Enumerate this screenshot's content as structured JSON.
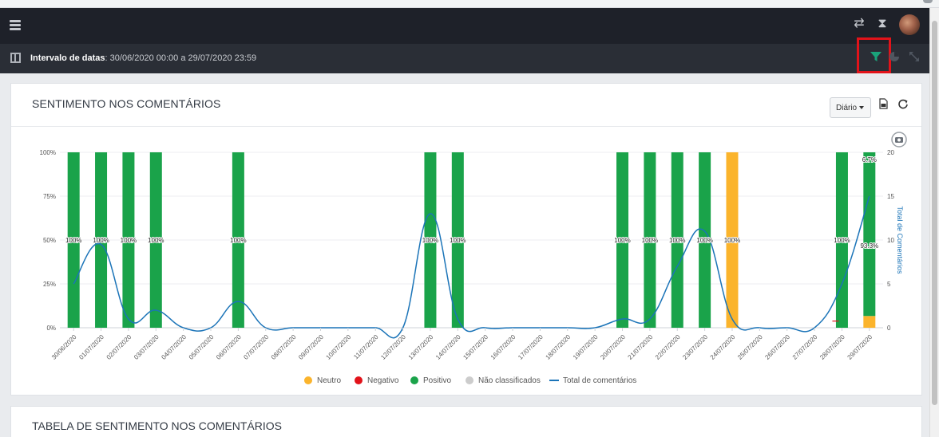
{
  "header": {
    "date_range_label": "Intervalo de datas",
    "date_range_value": ": 30/06/2020 00:00 a 29/07/2020 23:59"
  },
  "icons": {
    "menu": "hamburger-icon",
    "sync": "sync-icon",
    "hourglass": "hourglass-icon",
    "layout": "layout-icon",
    "filter": "filter-icon",
    "chart_toggle": "pie-chart-icon",
    "expand": "expand-icon",
    "pdf": "pdf-icon",
    "refresh": "refresh-icon",
    "camera": "camera-icon"
  },
  "colors": {
    "neutro": "#fbb42c",
    "negativo": "#e2121a",
    "positivo": "#1aa34a",
    "nao_classificados": "#cccccc",
    "total_line": "#1b74b8",
    "filter_highlight": "#e2131a",
    "filter_icon": "#1aa37a"
  },
  "card": {
    "title": "SENTIMENTO NOS COMENTÁRIOS",
    "granularity_button": "Diário"
  },
  "card2": {
    "title": "TABELA DE SENTIMENTO NOS COMENTÁRIOS"
  },
  "chart_data": {
    "type": "bar",
    "stacked": true,
    "categories": [
      "30/06/2020",
      "01/07/2020",
      "02/07/2020",
      "03/07/2020",
      "04/07/2020",
      "05/07/2020",
      "06/07/2020",
      "07/07/2020",
      "08/07/2020",
      "09/07/2020",
      "10/07/2020",
      "11/07/2020",
      "12/07/2020",
      "13/07/2020",
      "14/07/2020",
      "15/07/2020",
      "16/07/2020",
      "17/07/2020",
      "18/07/2020",
      "19/07/2020",
      "20/07/2020",
      "21/07/2020",
      "22/07/2020",
      "23/07/2020",
      "24/07/2020",
      "25/07/2020",
      "26/07/2020",
      "27/07/2020",
      "28/07/2020",
      "29/07/2020"
    ],
    "y_ticks": [
      "0%",
      "25%",
      "50%",
      "75%",
      "100%"
    ],
    "ylim": [
      0,
      100
    ],
    "y2_label": "Total de Comentários",
    "y2_ticks": [
      "0",
      "5",
      "10",
      "15",
      "20"
    ],
    "y2lim": [
      0,
      20
    ],
    "series": [
      {
        "name": "Neutro",
        "color": "#fbb42c",
        "values": [
          0,
          0,
          0,
          0,
          0,
          0,
          0,
          0,
          0,
          0,
          0,
          0,
          0,
          0,
          0,
          0,
          0,
          0,
          0,
          0,
          0,
          0,
          0,
          0,
          100,
          0,
          0,
          0,
          0,
          6.7
        ]
      },
      {
        "name": "Negativo",
        "color": "#e2121a",
        "values": [
          0,
          0,
          0,
          0,
          0,
          0,
          0,
          0,
          0,
          0,
          0,
          0,
          0,
          0,
          0,
          0,
          0,
          0,
          0,
          0,
          0,
          0,
          0,
          0,
          0,
          0,
          0,
          0,
          0,
          0
        ]
      },
      {
        "name": "Positivo",
        "color": "#1aa34a",
        "values": [
          100,
          100,
          100,
          100,
          0,
          0,
          100,
          0,
          0,
          0,
          0,
          0,
          0,
          100,
          100,
          0,
          0,
          0,
          0,
          0,
          100,
          100,
          100,
          100,
          0,
          0,
          0,
          0,
          100,
          93.3
        ]
      },
      {
        "name": "Não classificados",
        "color": "#cccccc",
        "values": [
          0,
          0,
          0,
          0,
          0,
          0,
          0,
          0,
          0,
          0,
          0,
          0,
          0,
          0,
          0,
          0,
          0,
          0,
          0,
          0,
          0,
          0,
          0,
          0,
          0,
          0,
          0,
          0,
          0,
          0
        ]
      }
    ],
    "line": {
      "name": "Total de comentários",
      "color": "#1b74b8",
      "axis": "y2",
      "values": [
        5,
        9.5,
        1,
        2,
        0,
        0,
        3,
        0,
        0,
        0,
        0,
        0,
        0,
        13,
        1,
        0,
        0,
        0,
        0,
        0,
        1,
        1,
        7,
        11,
        1,
        0,
        0,
        0,
        5,
        15
      ]
    },
    "data_labels": [
      {
        "index": 0,
        "text": "100%"
      },
      {
        "index": 1,
        "text": "100%"
      },
      {
        "index": 2,
        "text": "100%"
      },
      {
        "index": 3,
        "text": "100%"
      },
      {
        "index": 6,
        "text": "100%"
      },
      {
        "index": 13,
        "text": "100%"
      },
      {
        "index": 14,
        "text": "100%"
      },
      {
        "index": 20,
        "text": "100%"
      },
      {
        "index": 21,
        "text": "100%"
      },
      {
        "index": 22,
        "text": "100%"
      },
      {
        "index": 23,
        "text": "100%"
      },
      {
        "index": 24,
        "text": "100%"
      },
      {
        "index": 28,
        "text": "100%"
      },
      {
        "index": 29,
        "text": "93.3%",
        "position": "mid"
      },
      {
        "index": 29,
        "text": "6.7%",
        "position": "top"
      }
    ],
    "legend": [
      "Neutro",
      "Negativo",
      "Positivo",
      "Não classificados",
      "Total de comentários"
    ],
    "legend_position": "bottom"
  }
}
